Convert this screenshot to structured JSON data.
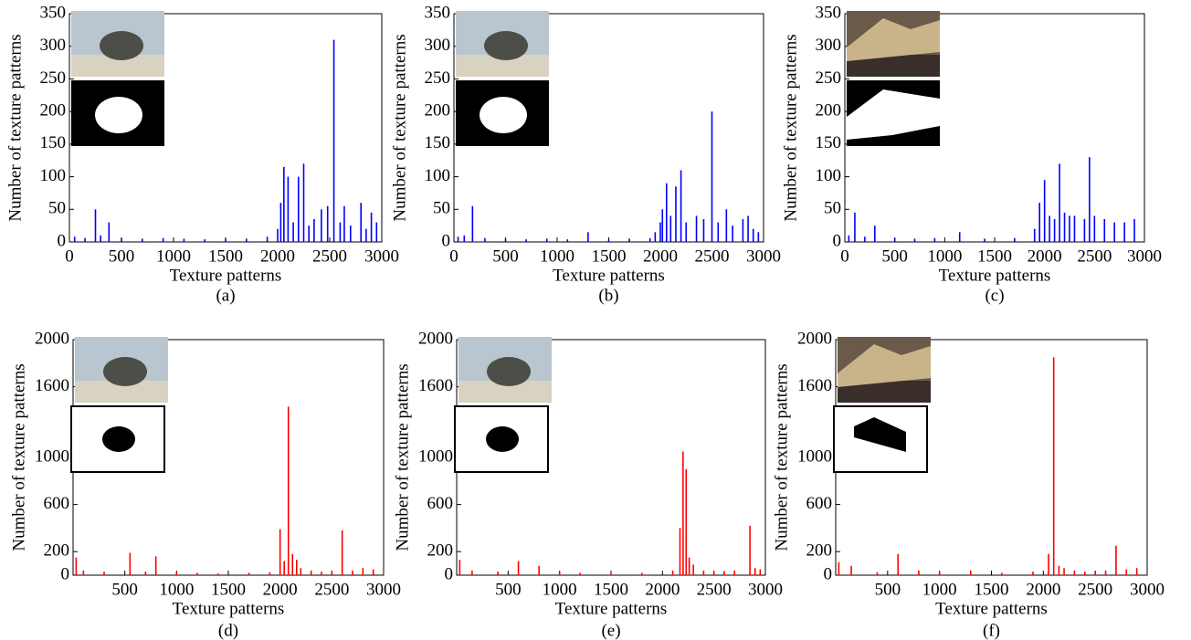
{
  "chart_data": [
    {
      "type": "spike",
      "caption": "(a)",
      "x_label": "Texture patterns",
      "y_label": "Number of texture patterns",
      "color": "#0000ff",
      "xlim": [
        0,
        3000
      ],
      "xticks": [
        0,
        500,
        1000,
        1500,
        2000,
        2500,
        3000
      ],
      "ylim": [
        0,
        350
      ],
      "yticks": [
        0,
        50,
        100,
        150,
        200,
        250,
        300,
        350
      ],
      "x": [
        50,
        150,
        250,
        300,
        380,
        500,
        700,
        900,
        1100,
        1300,
        1500,
        1700,
        1900,
        2000,
        2030,
        2060,
        2100,
        2150,
        2200,
        2250,
        2300,
        2350,
        2420,
        2480,
        2540,
        2600,
        2640,
        2700,
        2800,
        2850,
        2900,
        2950
      ],
      "values": [
        8,
        6,
        50,
        10,
        30,
        6,
        5,
        6,
        5,
        4,
        5,
        5,
        8,
        20,
        60,
        115,
        100,
        30,
        100,
        120,
        25,
        35,
        50,
        55,
        310,
        30,
        55,
        25,
        60,
        20,
        45,
        30
      ]
    },
    {
      "type": "spike",
      "caption": "(b)",
      "x_label": "Texture patterns",
      "y_label": "Number of texture patterns",
      "color": "#0000ff",
      "xlim": [
        0,
        3000
      ],
      "xticks": [
        0,
        500,
        1000,
        1500,
        2000,
        2500,
        3000
      ],
      "ylim": [
        0,
        350
      ],
      "yticks": [
        0,
        50,
        100,
        150,
        200,
        250,
        300,
        350
      ],
      "x": [
        40,
        100,
        180,
        300,
        500,
        700,
        900,
        1100,
        1300,
        1500,
        1700,
        1900,
        1950,
        2000,
        2020,
        2060,
        2100,
        2150,
        2200,
        2250,
        2350,
        2420,
        2500,
        2560,
        2640,
        2700,
        2800,
        2850,
        2900,
        2950
      ],
      "values": [
        8,
        10,
        55,
        6,
        5,
        4,
        5,
        4,
        15,
        4,
        5,
        6,
        15,
        30,
        50,
        90,
        40,
        85,
        110,
        30,
        40,
        35,
        200,
        30,
        50,
        25,
        35,
        40,
        20,
        15
      ]
    },
    {
      "type": "spike",
      "caption": "(c)",
      "x_label": "Texture patterns",
      "y_label": "Number of texture patterns",
      "color": "#0000ff",
      "xlim": [
        0,
        3000
      ],
      "xticks": [
        0,
        500,
        1000,
        1500,
        2000,
        2500,
        3000
      ],
      "ylim": [
        0,
        350
      ],
      "yticks": [
        0,
        50,
        100,
        150,
        200,
        250,
        300,
        350
      ],
      "x": [
        40,
        100,
        200,
        300,
        500,
        700,
        900,
        1150,
        1400,
        1700,
        1900,
        1950,
        2000,
        2050,
        2100,
        2150,
        2200,
        2250,
        2300,
        2400,
        2450,
        2500,
        2600,
        2700,
        2800,
        2900
      ],
      "values": [
        10,
        45,
        8,
        25,
        6,
        5,
        6,
        15,
        5,
        6,
        20,
        60,
        95,
        40,
        35,
        120,
        45,
        40,
        40,
        35,
        130,
        40,
        35,
        30,
        30,
        35
      ]
    },
    {
      "type": "spike",
      "caption": "(d)",
      "x_label": "Texture patterns",
      "y_label": "Number of texture patterns",
      "color": "#ff0000",
      "xlim": [
        0,
        3000
      ],
      "xticks": [
        500,
        1000,
        1500,
        2000,
        2500,
        3000
      ],
      "ylim": [
        0,
        2000
      ],
      "yticks": [
        0,
        200,
        600,
        1000,
        1600,
        2000
      ],
      "x": [
        30,
        100,
        300,
        550,
        700,
        800,
        1000,
        1200,
        1400,
        1700,
        1900,
        2000,
        2040,
        2080,
        2120,
        2160,
        2200,
        2300,
        2400,
        2500,
        2600,
        2700,
        2800,
        2900
      ],
      "values": [
        150,
        40,
        30,
        190,
        30,
        160,
        25,
        20,
        15,
        20,
        25,
        390,
        120,
        1430,
        180,
        130,
        60,
        40,
        30,
        35,
        380,
        40,
        60,
        50
      ]
    },
    {
      "type": "spike",
      "caption": "(e)",
      "x_label": "Texture patterns",
      "y_label": "Number of texture patterns",
      "color": "#ff0000",
      "xlim": [
        0,
        3000
      ],
      "xticks": [
        500,
        1000,
        1500,
        2000,
        2500,
        3000
      ],
      "ylim": [
        0,
        2000
      ],
      "yticks": [
        0,
        200,
        600,
        1000,
        1600,
        2000
      ],
      "x": [
        30,
        150,
        400,
        600,
        800,
        1000,
        1200,
        1500,
        1800,
        2100,
        2170,
        2200,
        2230,
        2260,
        2300,
        2400,
        2500,
        2600,
        2700,
        2850,
        2900,
        2950
      ],
      "values": [
        130,
        40,
        30,
        120,
        80,
        30,
        20,
        15,
        20,
        40,
        400,
        1050,
        900,
        150,
        90,
        40,
        30,
        35,
        40,
        420,
        60,
        50
      ]
    },
    {
      "type": "spike",
      "caption": "(f)",
      "x_label": "Texture patterns",
      "y_label": "Number of texture patterns",
      "color": "#ff0000",
      "xlim": [
        0,
        3000
      ],
      "xticks": [
        500,
        1000,
        1500,
        2000,
        2500,
        3000
      ],
      "ylim": [
        0,
        2000
      ],
      "yticks": [
        0,
        200,
        600,
        1000,
        1600,
        2000
      ],
      "x": [
        30,
        150,
        400,
        600,
        800,
        1000,
        1300,
        1600,
        1900,
        2050,
        2100,
        2150,
        2200,
        2300,
        2400,
        2500,
        2600,
        2700,
        2800,
        2900
      ],
      "values": [
        110,
        80,
        25,
        180,
        40,
        25,
        40,
        20,
        30,
        180,
        1850,
        80,
        60,
        40,
        30,
        35,
        40,
        250,
        50,
        60
      ]
    }
  ]
}
